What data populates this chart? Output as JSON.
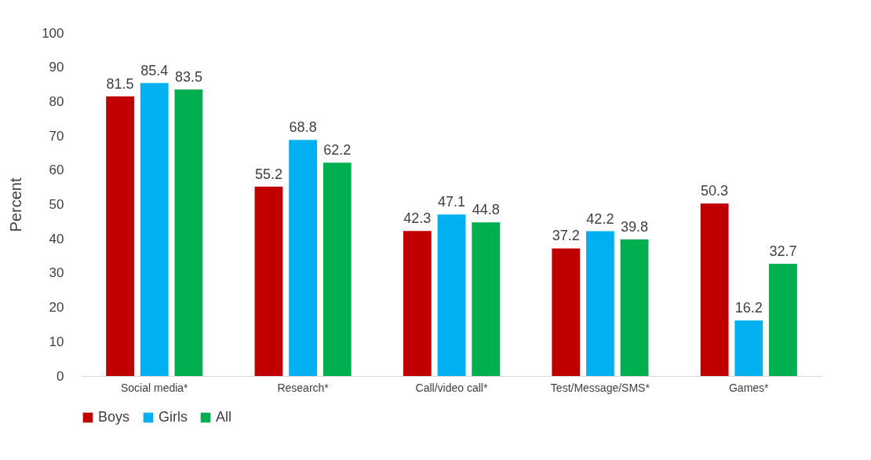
{
  "chart_data": {
    "type": "bar",
    "ylabel": "Percent",
    "categories": [
      "Social media*",
      "Research*",
      "Call/video call*",
      "Test/Message/SMS*",
      "Games*"
    ],
    "series": [
      {
        "name": "Boys",
        "color": "#c00000",
        "values": [
          81.5,
          55.2,
          42.3,
          37.2,
          50.3
        ]
      },
      {
        "name": "Girls",
        "color": "#00b0f0",
        "values": [
          85.4,
          68.8,
          47.1,
          42.2,
          16.2
        ]
      },
      {
        "name": "All",
        "color": "#00b050",
        "values": [
          83.5,
          62.2,
          44.8,
          39.8,
          32.7
        ]
      }
    ],
    "ylim": [
      0,
      100
    ],
    "yticks": [
      0,
      10,
      20,
      30,
      40,
      50,
      60,
      70,
      80,
      90,
      100
    ],
    "grid": false,
    "legend": "bottom",
    "data_labels": true
  }
}
